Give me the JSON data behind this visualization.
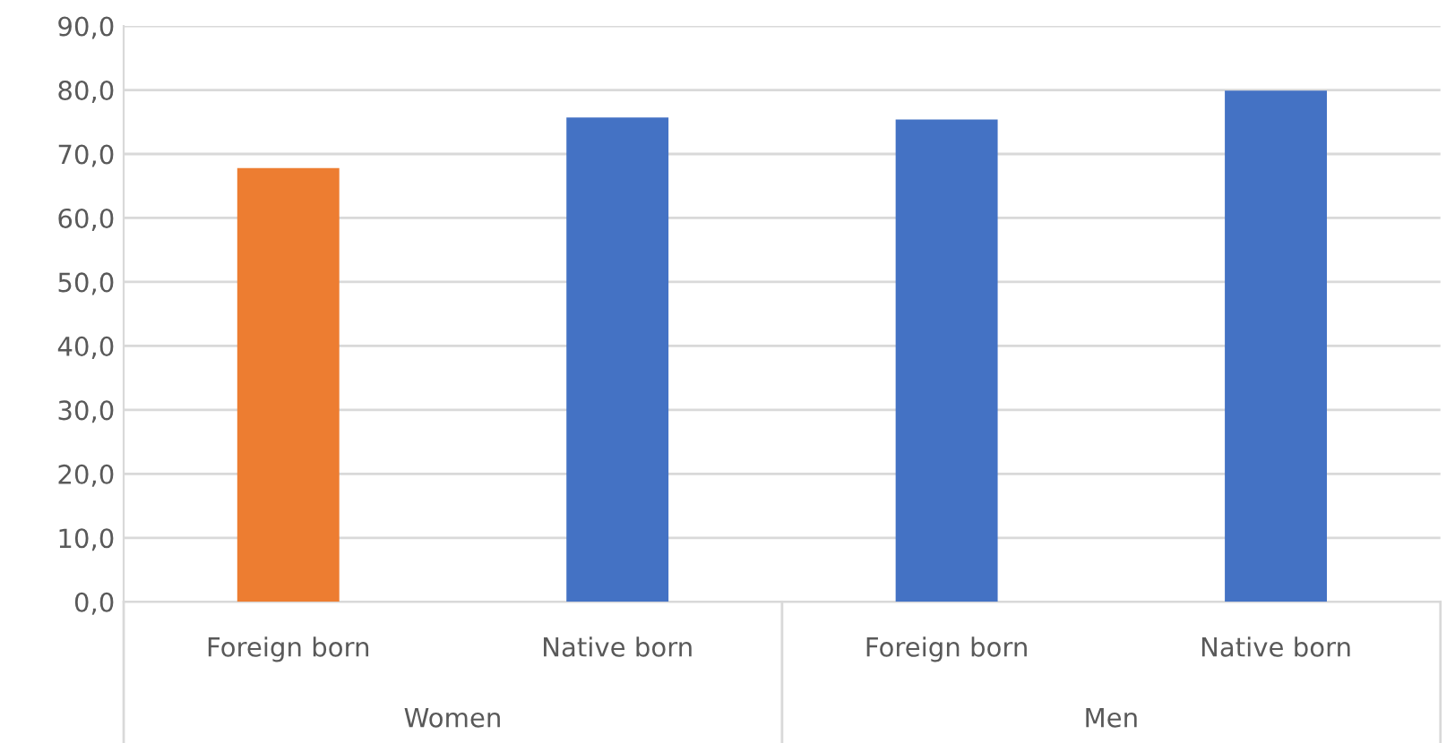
{
  "chart_data": {
    "type": "bar",
    "categories": [
      "Foreign born",
      "Native born",
      "Foreign born",
      "Native born"
    ],
    "values": [
      67.8,
      75.7,
      75.4,
      79.9
    ],
    "colors": [
      "#ed7d31",
      "#4472c4",
      "#4472c4",
      "#4472c4"
    ],
    "annotations": [
      "Women",
      "Men"
    ],
    "ylim": [
      0,
      90
    ],
    "yticks": [
      {
        "value": 0,
        "label": "0,0"
      },
      {
        "value": 10,
        "label": "10,0"
      },
      {
        "value": 20,
        "label": "20,0"
      },
      {
        "value": 30,
        "label": "30,0"
      },
      {
        "value": 40,
        "label": "40,0"
      },
      {
        "value": 50,
        "label": "50,0"
      },
      {
        "value": 60,
        "label": "60,0"
      },
      {
        "value": 70,
        "label": "70,0"
      },
      {
        "value": 80,
        "label": "80,0"
      },
      {
        "value": 90,
        "label": "90,0"
      }
    ],
    "grid": "y"
  }
}
